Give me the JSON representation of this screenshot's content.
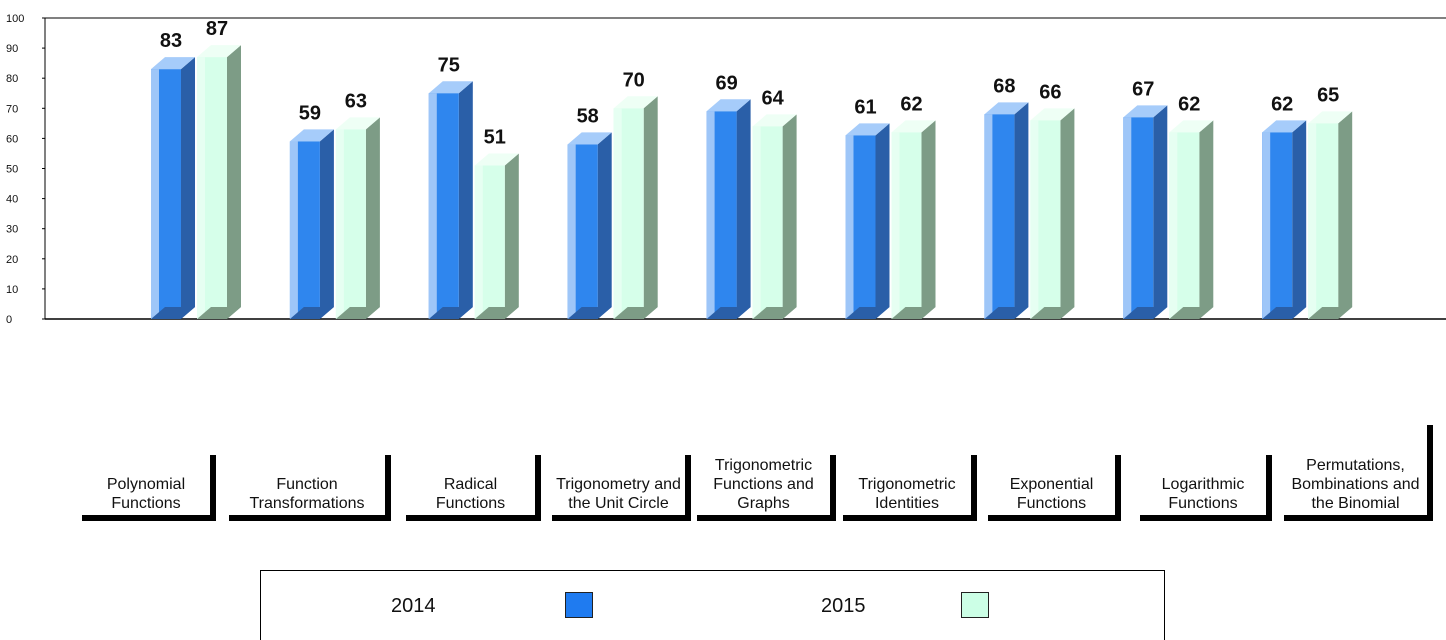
{
  "chart_data": {
    "type": "bar3d",
    "categories": [
      "Polynomial Functions",
      "Function Transformations",
      "Radical Functions",
      "Trigonometry and the Unit Circle",
      "Trigonometric Functions and Graphs",
      "Trigonometric Identities",
      "Exponential Functions",
      "Logarithmic Functions",
      "Permutations, Bombinations and the Binomial"
    ],
    "series": [
      {
        "name": "2014",
        "color": "#1f7bf0",
        "values": [
          83,
          59,
          75,
          58,
          69,
          61,
          68,
          67,
          62
        ]
      },
      {
        "name": "2015",
        "color": "#ccffe6",
        "values": [
          87,
          63,
          51,
          70,
          64,
          62,
          66,
          62,
          65
        ]
      }
    ],
    "ylim": [
      0,
      100
    ],
    "yticks": [
      0,
      10,
      20,
      30,
      40,
      50,
      60,
      70,
      80,
      90,
      100
    ]
  }
}
